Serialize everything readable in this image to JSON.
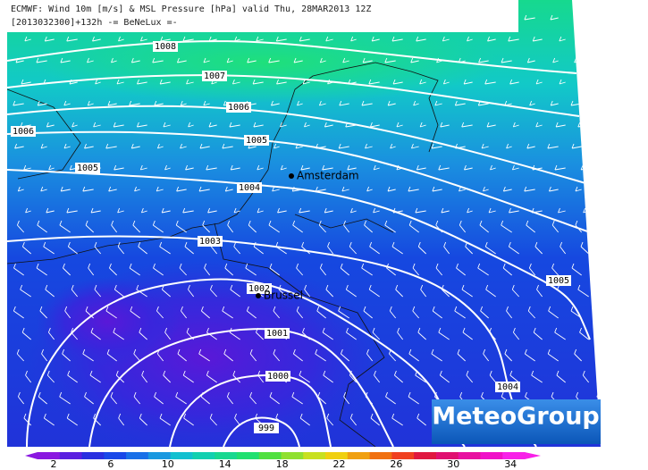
{
  "header": {
    "line1": "ECMWF: Wind 10m [m/s] & MSL Pressure [hPa] valid Thu, 28MAR2013 12Z",
    "line2": "[2013032300]+132h -= BeNeLux =-"
  },
  "isobar_labels": [
    1008,
    1007,
    1006,
    1006,
    1005,
    1005,
    1004,
    1003,
    1002,
    1005,
    1001,
    1000,
    1004,
    999
  ],
  "cities": [
    "Amsterdam",
    "Brussel"
  ],
  "colorbar": {
    "labels": [
      2,
      6,
      10,
      14,
      18,
      22,
      26,
      30,
      34
    ]
  },
  "logo": "MeteoGroup"
}
